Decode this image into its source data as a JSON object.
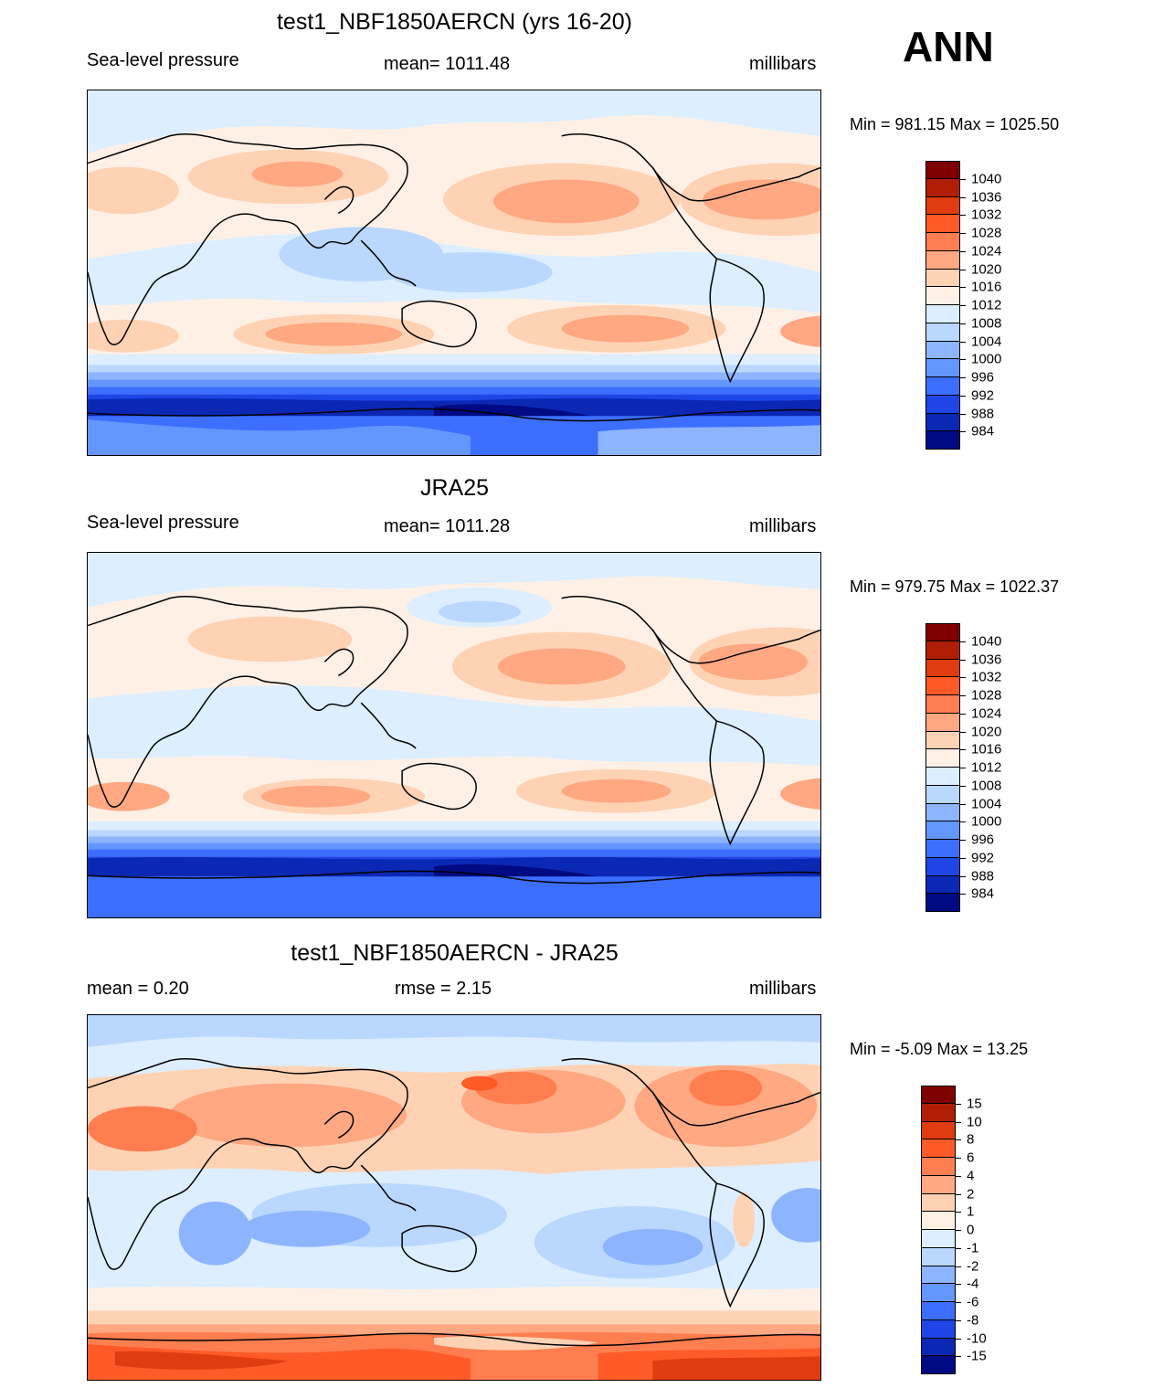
{
  "season": "ANN",
  "panels": [
    {
      "title": "test1_NBF1850AERCN (yrs 16-20)",
      "left_label": "Sea-level pressure",
      "center_label": "mean= 1011.48",
      "right_label": "millibars",
      "minmax": "Min = 981.15 Max = 1025.50",
      "variant": "model",
      "colorbar": {
        "labels": [
          "1040",
          "1036",
          "1032",
          "1028",
          "1024",
          "1020",
          "1016",
          "1012",
          "1008",
          "1004",
          "1000",
          "996",
          "992",
          "988",
          "984"
        ],
        "colors": [
          "#7f0000",
          "#b01e05",
          "#e03c10",
          "#ff5a28",
          "#ff7e50",
          "#ffa882",
          "#ffd2b4",
          "#fff0e6",
          "#dceeff",
          "#b9d7ff",
          "#8cb4ff",
          "#6496ff",
          "#3c6eff",
          "#1e46e6",
          "#0a28b4",
          "#000a82"
        ]
      }
    },
    {
      "title": "JRA25",
      "left_label": "Sea-level pressure",
      "center_label": "mean= 1011.28",
      "right_label": "millibars",
      "minmax": "Min = 979.75 Max = 1022.37",
      "variant": "obs",
      "colorbar": {
        "labels": [
          "1040",
          "1036",
          "1032",
          "1028",
          "1024",
          "1020",
          "1016",
          "1012",
          "1008",
          "1004",
          "1000",
          "996",
          "992",
          "988",
          "984"
        ],
        "colors": [
          "#7f0000",
          "#b01e05",
          "#e03c10",
          "#ff5a28",
          "#ff7e50",
          "#ffa882",
          "#ffd2b4",
          "#fff0e6",
          "#dceeff",
          "#b9d7ff",
          "#8cb4ff",
          "#6496ff",
          "#3c6eff",
          "#1e46e6",
          "#0a28b4",
          "#000a82"
        ]
      }
    },
    {
      "title": "test1_NBF1850AERCN - JRA25",
      "left_label": "mean =   0.20",
      "center_label": "rmse =   2.15",
      "right_label": "millibars",
      "minmax": "Min =  -5.09 Max =  13.25",
      "variant": "diff",
      "colorbar": {
        "labels": [
          "15",
          "10",
          "8",
          "6",
          "4",
          "2",
          "1",
          "0",
          "-1",
          "-2",
          "-4",
          "-6",
          "-8",
          "-10",
          "-15"
        ],
        "colors": [
          "#7f0000",
          "#b01e05",
          "#e03c10",
          "#ff5a28",
          "#ff7e50",
          "#ffa882",
          "#ffd2b4",
          "#fff0e6",
          "#dceeff",
          "#b9d7ff",
          "#8cb4ff",
          "#6496ff",
          "#3c6eff",
          "#1e46e6",
          "#0a28b4",
          "#000a82"
        ]
      }
    }
  ]
}
